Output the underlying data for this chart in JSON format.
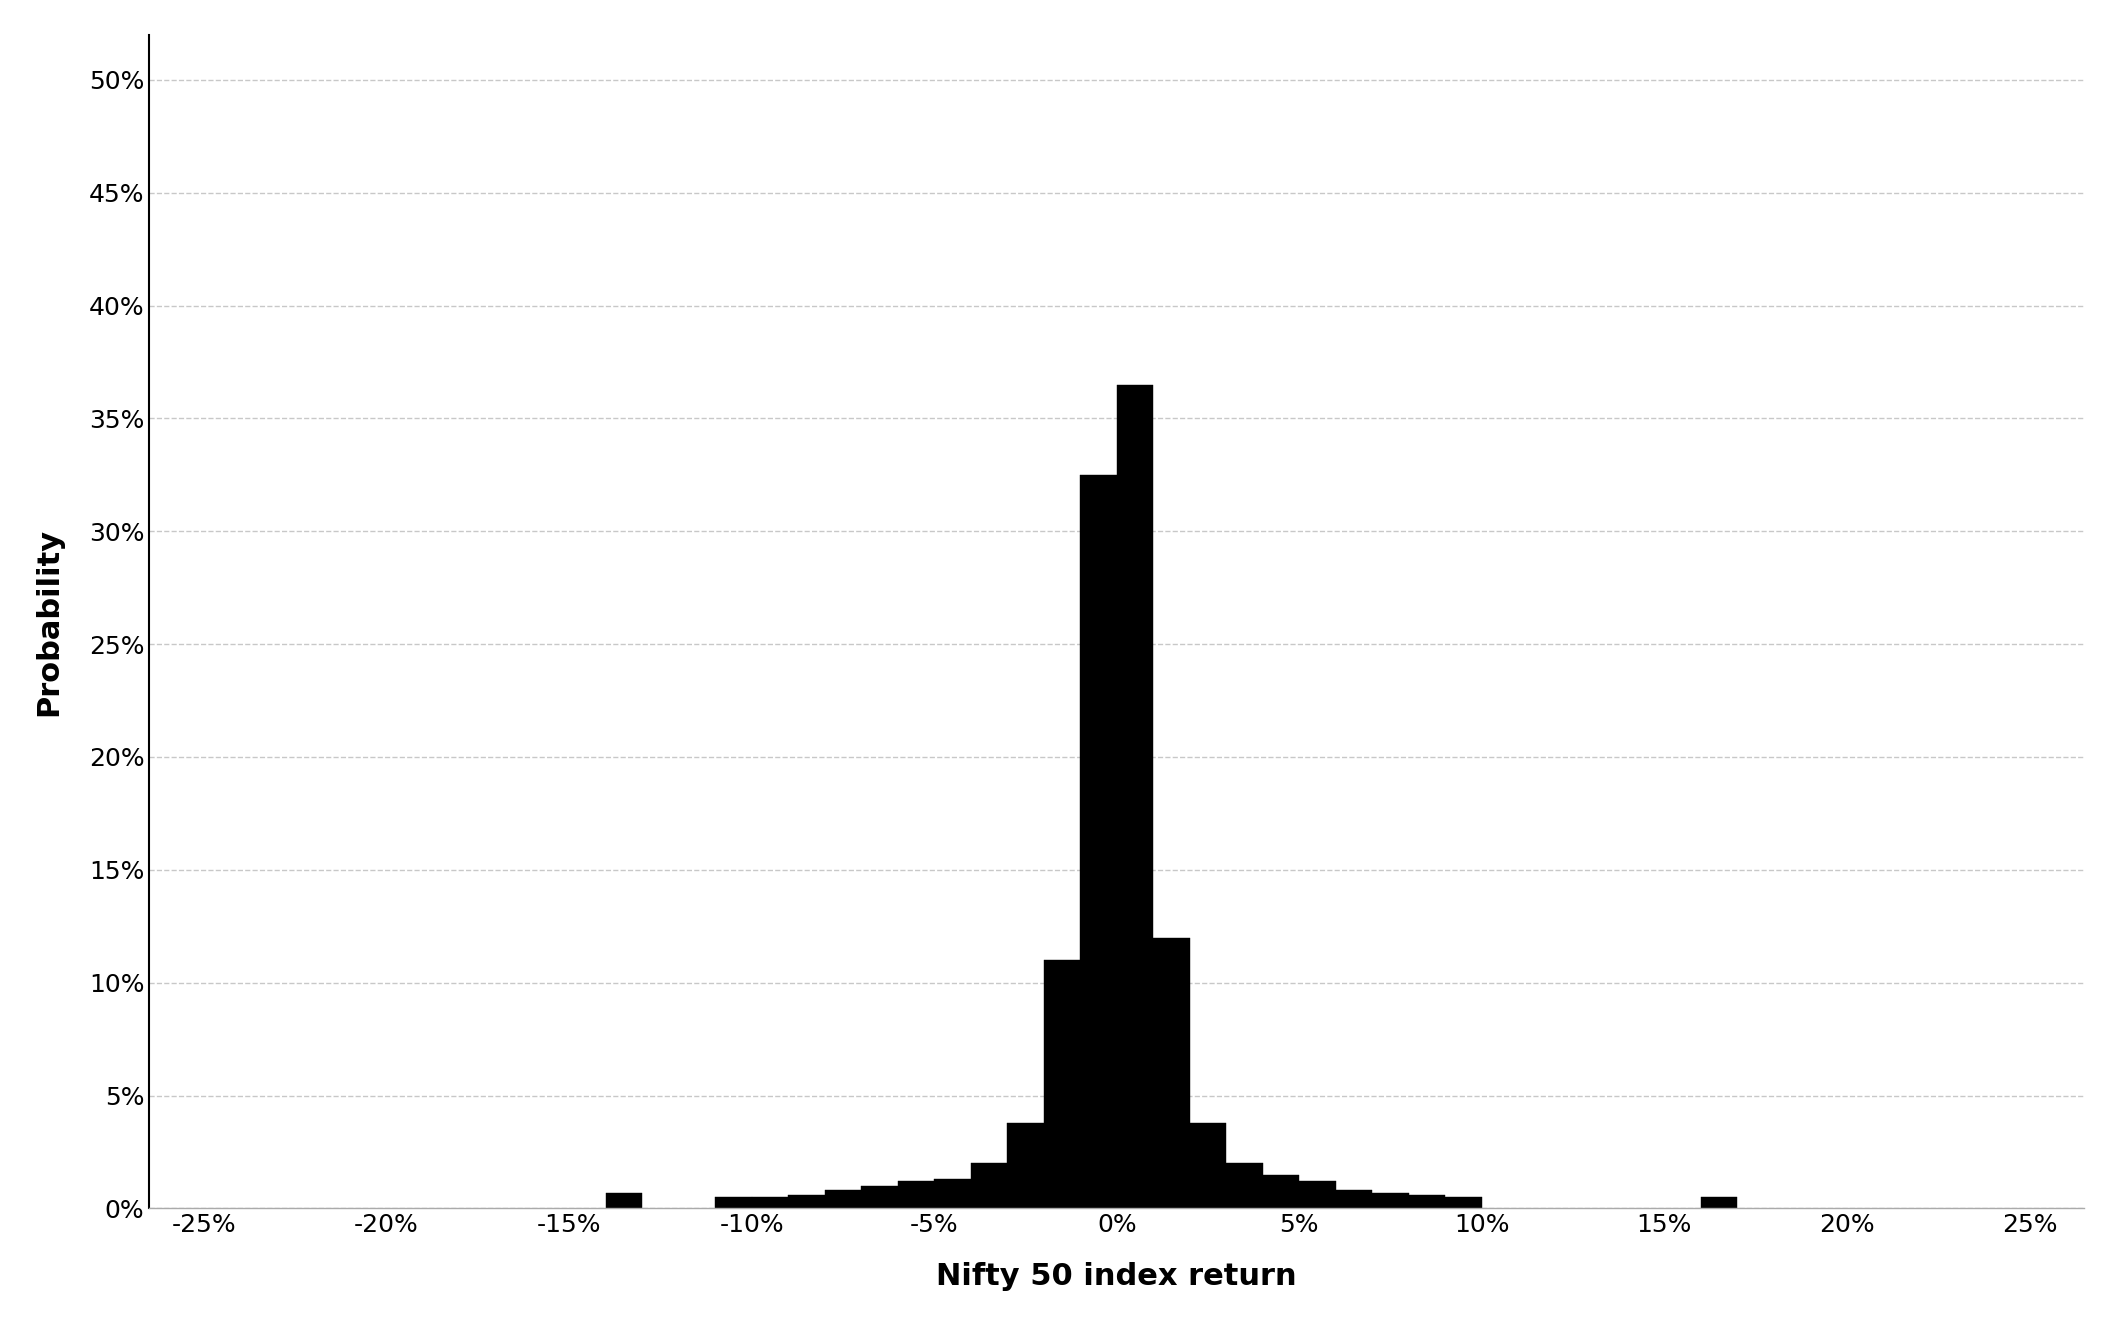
{
  "title": "",
  "xlabel": "Nifty 50 index return",
  "ylabel": "Probability",
  "bar_color": "#000000",
  "background_color": "#ffffff",
  "xlim": [
    -0.265,
    0.265
  ],
  "ylim": [
    0,
    0.52
  ],
  "xticks": [
    -0.25,
    -0.2,
    -0.15,
    -0.1,
    -0.05,
    0.0,
    0.05,
    0.1,
    0.15,
    0.2,
    0.25
  ],
  "yticks": [
    0.0,
    0.05,
    0.1,
    0.15,
    0.2,
    0.25,
    0.3,
    0.35,
    0.4,
    0.45,
    0.5
  ],
  "bin_left_edges": [
    -0.14,
    -0.11,
    -0.1,
    -0.09,
    -0.08,
    -0.07,
    -0.06,
    -0.05,
    -0.04,
    -0.03,
    -0.02,
    -0.01,
    0.0,
    0.01,
    0.02,
    0.03,
    0.04,
    0.05,
    0.06,
    0.07,
    0.08,
    0.09,
    0.16
  ],
  "heights": [
    0.007,
    0.005,
    0.005,
    0.006,
    0.008,
    0.01,
    0.012,
    0.013,
    0.02,
    0.038,
    0.11,
    0.325,
    0.365,
    0.12,
    0.038,
    0.02,
    0.015,
    0.012,
    0.008,
    0.007,
    0.006,
    0.005,
    0.005
  ],
  "bin_width": 0.01,
  "grid_color": "#c8c8c8",
  "xlabel_fontsize": 22,
  "ylabel_fontsize": 22,
  "tick_fontsize": 18,
  "xlabel_fontweight": "bold",
  "ylabel_fontweight": "bold",
  "left_spine_color": "#000000",
  "bottom_spine_color": "#aaaaaa"
}
